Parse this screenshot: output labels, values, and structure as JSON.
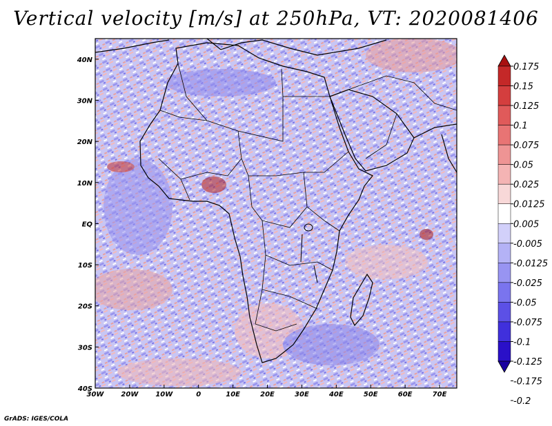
{
  "title": "Vertical velocity [m/s] at 250hPa, VT: 2020081406",
  "footer": "GrADS: IGES/COLA",
  "map": {
    "lon_range": [
      -30,
      75
    ],
    "lat_range": [
      -40,
      45
    ],
    "lon_ticks": [
      "30W",
      "20W",
      "10W",
      "0",
      "10E",
      "20E",
      "30E",
      "40E",
      "50E",
      "60E",
      "70E"
    ],
    "lat_ticks": [
      "40N",
      "30N",
      "20N",
      "10N",
      "EQ",
      "10S",
      "20S",
      "30S",
      "40S"
    ]
  },
  "colorbar": {
    "colors": [
      "#1a00a0",
      "#2a10c8",
      "#4030dc",
      "#5c50e6",
      "#7a74ee",
      "#9894f2",
      "#b4b2f6",
      "#d2d0fa",
      "#ffffff",
      "#f8d8d8",
      "#f4b4b4",
      "#ee9494",
      "#e87474",
      "#e05a5a",
      "#d43e3e",
      "#c42828",
      "#a81010"
    ],
    "labels": [
      "-0.2",
      "-0.175",
      "-0.125",
      "-0.1",
      "-0.075",
      "-0.05",
      "-0.025",
      "-0.0125",
      "-0.005",
      "0.005",
      "0.0125",
      "0.025",
      "0.05",
      "0.075",
      "0.1",
      "0.125",
      "0.15",
      "0.175"
    ]
  }
}
